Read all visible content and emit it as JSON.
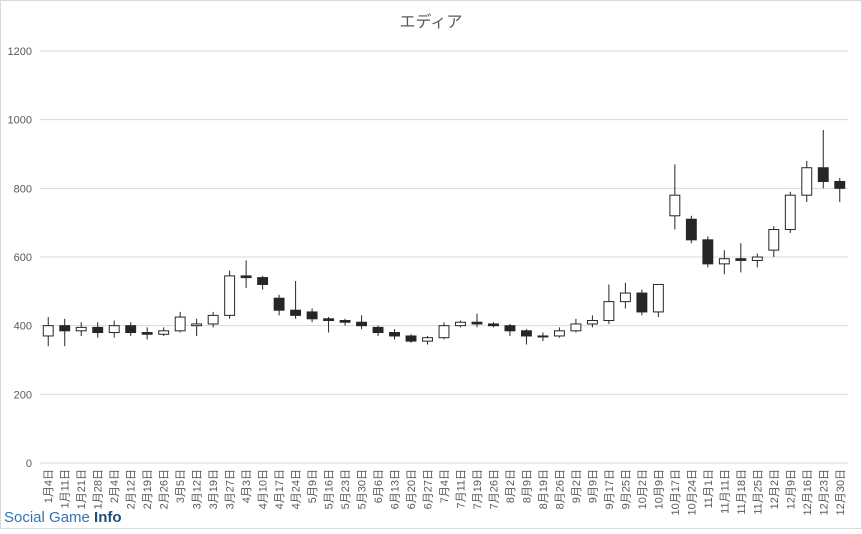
{
  "chart_data": {
    "type": "candlestick",
    "title": "エディア",
    "categories": [
      "1月4日",
      "1月11日",
      "1月21日",
      "1月28日",
      "2月4日",
      "2月12日",
      "2月19日",
      "2月26日",
      "3月5日",
      "3月12日",
      "3月19日",
      "3月27日",
      "4月3日",
      "4月10日",
      "4月17日",
      "4月24日",
      "5月9日",
      "5月16日",
      "5月23日",
      "5月30日",
      "6月6日",
      "6月13日",
      "6月20日",
      "6月27日",
      "7月4日",
      "7月11日",
      "7月19日",
      "7月26日",
      "8月2日",
      "8月9日",
      "8月19日",
      "8月26日",
      "9月2日",
      "9月9日",
      "9月17日",
      "9月25日",
      "10月2日",
      "10月9日",
      "10月17日",
      "10月24日",
      "11月1日",
      "11月11日",
      "11月18日",
      "11月25日",
      "12月2日",
      "12月9日",
      "12月16日",
      "12月23日",
      "12月30日"
    ],
    "open": [
      370,
      400,
      385,
      395,
      380,
      400,
      380,
      375,
      385,
      400,
      405,
      430,
      545,
      540,
      480,
      445,
      440,
      420,
      415,
      410,
      395,
      380,
      370,
      355,
      365,
      400,
      410,
      405,
      400,
      385,
      370,
      370,
      385,
      405,
      415,
      470,
      495,
      440,
      720,
      710,
      650,
      580,
      595,
      590,
      620,
      680,
      780,
      860,
      820
    ],
    "high": [
      425,
      420,
      410,
      410,
      415,
      410,
      395,
      395,
      440,
      420,
      440,
      560,
      590,
      545,
      490,
      530,
      450,
      425,
      420,
      430,
      400,
      390,
      375,
      370,
      410,
      415,
      435,
      410,
      405,
      390,
      380,
      395,
      420,
      430,
      520,
      525,
      505,
      520,
      870,
      720,
      660,
      620,
      640,
      610,
      690,
      790,
      880,
      970,
      830
    ],
    "low": [
      340,
      340,
      370,
      365,
      365,
      370,
      360,
      370,
      380,
      370,
      395,
      420,
      510,
      505,
      430,
      420,
      410,
      380,
      400,
      390,
      370,
      360,
      350,
      345,
      360,
      395,
      395,
      395,
      370,
      345,
      355,
      365,
      380,
      395,
      405,
      450,
      430,
      425,
      680,
      640,
      570,
      550,
      555,
      570,
      600,
      670,
      760,
      800,
      760
    ],
    "close": [
      400,
      385,
      395,
      380,
      400,
      380,
      375,
      385,
      425,
      405,
      430,
      545,
      540,
      520,
      445,
      430,
      420,
      415,
      410,
      400,
      380,
      370,
      355,
      365,
      400,
      410,
      405,
      400,
      385,
      370,
      370,
      385,
      405,
      415,
      470,
      495,
      440,
      520,
      780,
      650,
      580,
      595,
      590,
      600,
      680,
      780,
      860,
      820,
      800
    ],
    "ylim": [
      0,
      1200
    ],
    "yticks": [
      0,
      200,
      400,
      600,
      800,
      1000,
      1200
    ],
    "grid": true,
    "up_color": "#ffffff",
    "down_color": "#262626",
    "edge_color": "#262626"
  },
  "watermark": {
    "brand": "Social Game",
    "suffix": "Info"
  }
}
